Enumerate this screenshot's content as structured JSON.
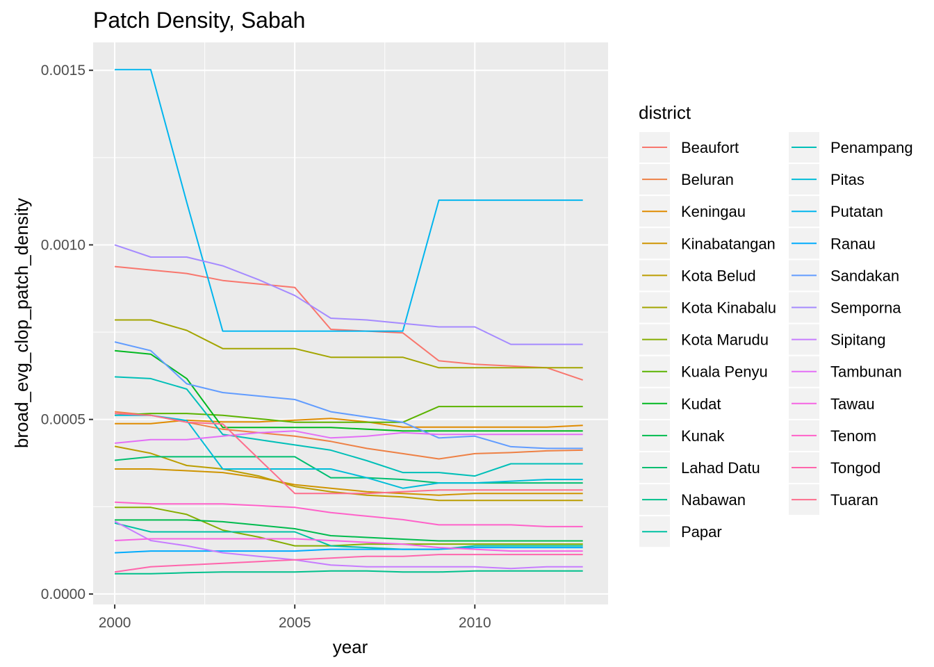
{
  "chart_data": {
    "type": "line",
    "title": "Patch Density, Sabah",
    "xlabel": "year",
    "ylabel": "broad_evg_clop_patch_density",
    "xlim": [
      1999.4,
      2013.7
    ],
    "ylim": [
      -3e-05,
      0.00158
    ],
    "x_ticks": [
      2000,
      2005,
      2010
    ],
    "x_tick_labels": [
      "2000",
      "2005",
      "2010"
    ],
    "y_ticks": [
      0,
      0.0005,
      0.001,
      0.0015
    ],
    "y_tick_labels": [
      "0.0000",
      "0.0005",
      "0.0010",
      "0.0015"
    ],
    "grid": true,
    "legend_title": "district",
    "legend_position": "right",
    "x": [
      2000,
      2001,
      2002,
      2003,
      2004,
      2005,
      2006,
      2007,
      2008,
      2009,
      2010,
      2011,
      2012,
      2013
    ],
    "series": [
      {
        "name": "Beaufort",
        "color": "#F8766D",
        "values": [
          0.000938,
          0.000928,
          0.000918,
          0.000898,
          0.000888,
          0.000878,
          0.000758,
          0.000753,
          0.000748,
          0.000668,
          0.000658,
          0.000653,
          0.000648,
          0.000613
        ]
      },
      {
        "name": "Beluran",
        "color": "#EE8044",
        "values": [
          0.000522,
          0.000512,
          0.000492,
          0.000472,
          0.000462,
          0.000452,
          0.000437,
          0.000417,
          0.000402,
          0.000387,
          0.000402,
          0.000405,
          0.00041,
          0.000412
        ]
      },
      {
        "name": "Keningau",
        "color": "#E08B00",
        "values": [
          0.000488,
          0.000488,
          0.000498,
          0.000493,
          0.000493,
          0.000498,
          0.000503,
          0.000493,
          0.000478,
          0.000478,
          0.000478,
          0.000478,
          0.000478,
          0.000483
        ]
      },
      {
        "name": "Kinabatangan",
        "color": "#CF9400",
        "values": [
          0.000358,
          0.000358,
          0.000353,
          0.000348,
          0.000333,
          0.000313,
          0.000303,
          0.000293,
          0.000288,
          0.000283,
          0.000288,
          0.000288,
          0.000288,
          0.000288
        ]
      },
      {
        "name": "Kota Belud",
        "color": "#BB9D00",
        "values": [
          0.000423,
          0.000403,
          0.000368,
          0.000358,
          0.000338,
          0.000308,
          0.000293,
          0.000283,
          0.000278,
          0.000268,
          0.000268,
          0.000268,
          0.000268,
          0.000268
        ]
      },
      {
        "name": "Kota Kinabalu",
        "color": "#A3A500",
        "values": [
          0.000785,
          0.000785,
          0.000755,
          0.000703,
          0.000703,
          0.000703,
          0.000678,
          0.000678,
          0.000678,
          0.000648,
          0.000648,
          0.000648,
          0.000648,
          0.000648
        ]
      },
      {
        "name": "Kota Marudu",
        "color": "#85AD00",
        "values": [
          0.000248,
          0.000248,
          0.000228,
          0.000183,
          0.000163,
          0.000138,
          0.000138,
          0.000143,
          0.000143,
          0.000143,
          0.000143,
          0.000143,
          0.000143,
          0.000143
        ]
      },
      {
        "name": "Kuala Penyu",
        "color": "#5BB300",
        "values": [
          0.000512,
          0.000517,
          0.000517,
          0.000512,
          0.000502,
          0.000492,
          0.000492,
          0.000492,
          0.000492,
          0.000537,
          0.000537,
          0.000537,
          0.000537,
          0.000537
        ]
      },
      {
        "name": "Kudat",
        "color": "#00B81F",
        "values": [
          0.000697,
          0.000687,
          0.000617,
          0.000477,
          0.000477,
          0.000477,
          0.000477,
          0.000472,
          0.000467,
          0.000467,
          0.000467,
          0.000467,
          0.000467,
          0.000467
        ]
      },
      {
        "name": "Kunak",
        "color": "#00BB4E",
        "values": [
          0.000212,
          0.000212,
          0.000212,
          0.000207,
          0.000197,
          0.000187,
          0.000167,
          0.000162,
          0.000157,
          0.000152,
          0.000152,
          0.000152,
          0.000152,
          0.000152
        ]
      },
      {
        "name": "Lahad Datu",
        "color": "#00BE70",
        "values": [
          0.000383,
          0.000393,
          0.000393,
          0.000393,
          0.000393,
          0.000393,
          0.000333,
          0.000333,
          0.000328,
          0.000318,
          0.000318,
          0.000318,
          0.000318,
          0.000318
        ]
      },
      {
        "name": "Nabawan",
        "color": "#00C08B",
        "values": [
          5.8e-05,
          5.8e-05,
          6.1e-05,
          6.3e-05,
          6.3e-05,
          6.3e-05,
          6.6e-05,
          6.6e-05,
          6.3e-05,
          6.3e-05,
          6.6e-05,
          6.6e-05,
          6.6e-05,
          6.6e-05
        ]
      },
      {
        "name": "Papar",
        "color": "#00C1A3",
        "values": [
          0.000203,
          0.000178,
          0.000178,
          0.000178,
          0.000178,
          0.000178,
          0.000138,
          0.000133,
          0.000128,
          0.000128,
          0.000138,
          0.000138,
          0.000138,
          0.000138
        ]
      },
      {
        "name": "Penampang",
        "color": "#00BFB8",
        "values": [
          0.000622,
          0.000617,
          0.000587,
          0.000457,
          0.000442,
          0.000427,
          0.000412,
          0.000382,
          0.000348,
          0.000348,
          0.000338,
          0.000373,
          0.000373,
          0.000373
        ]
      },
      {
        "name": "Pitas",
        "color": "#00BCD8",
        "values": [
          0.000512,
          0.000512,
          0.000497,
          0.000358,
          0.000358,
          0.000358,
          0.000358,
          0.000333,
          0.000303,
          0.000318,
          0.000318,
          0.000323,
          0.000328,
          0.000328
        ]
      },
      {
        "name": "Putatan",
        "color": "#00B5EE",
        "values": [
          0.001502,
          0.001502,
          0.001122,
          0.000753,
          0.000753,
          0.000753,
          0.000753,
          0.000753,
          0.000753,
          0.001128,
          0.001128,
          0.001128,
          0.001128,
          0.001128
        ]
      },
      {
        "name": "Ranau",
        "color": "#00ABFD",
        "values": [
          0.000118,
          0.000123,
          0.000123,
          0.000123,
          0.000123,
          0.000123,
          0.000128,
          0.000128,
          0.000128,
          0.000128,
          0.000133,
          0.000133,
          0.000133,
          0.000133
        ]
      },
      {
        "name": "Sandakan",
        "color": "#619CFF",
        "values": [
          0.000722,
          0.000697,
          0.000602,
          0.000577,
          0.000567,
          0.000557,
          0.000522,
          0.000507,
          0.000492,
          0.000447,
          0.000452,
          0.000422,
          0.000417,
          0.000417
        ]
      },
      {
        "name": "Semporna",
        "color": "#A58AFF",
        "values": [
          0.001,
          0.000965,
          0.000965,
          0.00094,
          0.0009,
          0.000855,
          0.00079,
          0.000785,
          0.000775,
          0.000765,
          0.000765,
          0.000715,
          0.000715,
          0.000715
        ]
      },
      {
        "name": "Sipitang",
        "color": "#C77CFF",
        "values": [
          0.000208,
          0.000153,
          0.000138,
          0.000118,
          0.000108,
          9.8e-05,
          8.3e-05,
          7.8e-05,
          7.8e-05,
          7.8e-05,
          7.8e-05,
          7.3e-05,
          7.8e-05,
          7.8e-05
        ]
      },
      {
        "name": "Tambunan",
        "color": "#E36EF6",
        "values": [
          0.000432,
          0.000442,
          0.000442,
          0.000452,
          0.000462,
          0.000467,
          0.000447,
          0.000452,
          0.000462,
          0.000457,
          0.000457,
          0.000457,
          0.000457,
          0.000457
        ]
      },
      {
        "name": "Tawau",
        "color": "#F564E3",
        "values": [
          0.000153,
          0.000158,
          0.000158,
          0.000158,
          0.000158,
          0.000158,
          0.000153,
          0.000148,
          0.000143,
          0.000133,
          0.000128,
          0.000123,
          0.000123,
          0.000123
        ]
      },
      {
        "name": "Tenom",
        "color": "#FF61C9",
        "values": [
          0.000263,
          0.000258,
          0.000258,
          0.000258,
          0.000253,
          0.000248,
          0.000233,
          0.000223,
          0.000213,
          0.000198,
          0.000198,
          0.000198,
          0.000193,
          0.000193
        ]
      },
      {
        "name": "Tongod",
        "color": "#FF65AC",
        "values": [
          6.3e-05,
          7.8e-05,
          8.3e-05,
          8.8e-05,
          9.3e-05,
          9.8e-05,
          0.000103,
          0.000108,
          0.000108,
          0.000113,
          0.000113,
          0.000113,
          0.000113,
          0.000113
        ]
      },
      {
        "name": "Tuaran",
        "color": "#FD6E8C",
        "values": [
          0.000517,
          0.000512,
          0.000492,
          0.000487,
          0.000387,
          0.000288,
          0.000288,
          0.000288,
          0.000293,
          0.000298,
          0.000298,
          0.000298,
          0.000298,
          0.000298
        ]
      }
    ]
  }
}
